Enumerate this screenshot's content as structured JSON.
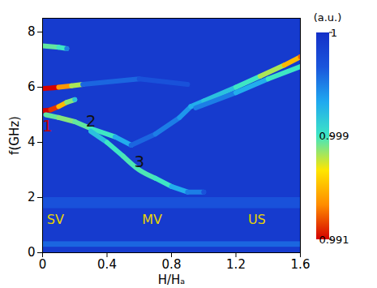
{
  "chart_data": {
    "type": "heatmap",
    "x_label": "H/Hₐ",
    "y_label": "f(GHz)",
    "xlim": [
      0,
      1.6
    ],
    "xticks": [
      0,
      0.4,
      0.8,
      1.2,
      1.6
    ],
    "ylim": [
      0,
      8.5
    ],
    "yticks": [
      0,
      2,
      4,
      6,
      8
    ],
    "background": 0.9999,
    "bands": [
      {
        "f1": 0.2,
        "f2": 0.4,
        "value": 0.9996
      },
      {
        "f1": 1.6,
        "f2": 2.0,
        "value": 0.9997
      }
    ],
    "ridges": [
      {
        "points": [
          [
            0,
            5.95,
            0.991
          ],
          [
            0.05,
            5.97,
            0.991
          ],
          [
            0.1,
            6.0,
            0.994
          ],
          [
            0.18,
            6.05,
            0.9975
          ],
          [
            0.25,
            6.1,
            0.9985
          ]
        ]
      },
      {
        "points": [
          [
            0,
            5.15,
            0.991
          ],
          [
            0.05,
            5.18,
            0.992
          ],
          [
            0.1,
            5.3,
            0.995
          ],
          [
            0.15,
            5.45,
            0.998
          ],
          [
            0.2,
            5.55,
            0.9992
          ]
        ]
      },
      {
        "points": [
          [
            0.02,
            5.0,
            0.9985
          ],
          [
            0.1,
            4.9,
            0.998
          ],
          [
            0.2,
            4.75,
            0.9985
          ],
          [
            0.3,
            4.5,
            0.999
          ],
          [
            0.45,
            4.2,
            0.9993
          ],
          [
            0.55,
            3.9,
            0.9995
          ]
        ]
      },
      {
        "points": [
          [
            0.3,
            4.4,
            0.9992
          ],
          [
            0.4,
            4.0,
            0.999
          ],
          [
            0.5,
            3.5,
            0.9988
          ],
          [
            0.6,
            3.0,
            0.9988
          ],
          [
            0.7,
            2.7,
            0.999
          ],
          [
            0.8,
            2.4,
            0.9993
          ],
          [
            0.9,
            2.2,
            0.9995
          ],
          [
            1.0,
            2.2,
            0.9997
          ]
        ]
      },
      {
        "points": [
          [
            0,
            7.5,
            0.9985
          ],
          [
            0.1,
            7.45,
            0.999
          ],
          [
            0.15,
            7.4,
            0.9995
          ]
        ]
      },
      {
        "points": [
          [
            0.92,
            5.3,
            0.9993
          ],
          [
            1.0,
            5.5,
            0.9992
          ],
          [
            1.2,
            6.0,
            0.999
          ],
          [
            1.35,
            6.4,
            0.9975
          ],
          [
            1.5,
            6.8,
            0.995
          ],
          [
            1.6,
            7.1,
            0.993
          ]
        ]
      },
      {
        "points": [
          [
            0.95,
            5.25,
            0.9995
          ],
          [
            1.2,
            5.8,
            0.9993
          ],
          [
            1.4,
            6.3,
            0.999
          ],
          [
            1.6,
            6.75,
            0.999
          ]
        ]
      },
      {
        "points": [
          [
            0.55,
            3.9,
            0.9996
          ],
          [
            0.7,
            4.3,
            0.9995
          ],
          [
            0.85,
            4.9,
            0.9994
          ],
          [
            0.92,
            5.3,
            0.9993
          ]
        ]
      },
      {
        "points": [
          [
            0.25,
            6.1,
            0.9996
          ],
          [
            0.6,
            6.3,
            0.9997
          ],
          [
            0.9,
            6.1,
            0.9997
          ]
        ]
      }
    ],
    "annotations": [
      {
        "text": "1",
        "x": 0.03,
        "y": 4.6,
        "color": "#c00000"
      },
      {
        "text": "2",
        "x": 0.3,
        "y": 4.75,
        "color": "#111111"
      },
      {
        "text": "3",
        "x": 0.6,
        "y": 3.3,
        "color": "#111111"
      },
      {
        "text": "SV",
        "x": 0.08,
        "y": 1.2,
        "color": "#e8d400"
      },
      {
        "text": "MV",
        "x": 0.68,
        "y": 1.2,
        "color": "#e8d400"
      },
      {
        "text": "US",
        "x": 1.33,
        "y": 1.2,
        "color": "#e8d400"
      }
    ],
    "colorbar": {
      "title": "(a.u.)",
      "range": [
        0.991,
        1
      ],
      "ticks": [
        0.991,
        0.999,
        1
      ],
      "colors": [
        "#d40000",
        "#ff8c00",
        "#ffe600",
        "#3ee6c4",
        "#1fa8f0",
        "#1a55dc",
        "#1430c8"
      ]
    }
  }
}
